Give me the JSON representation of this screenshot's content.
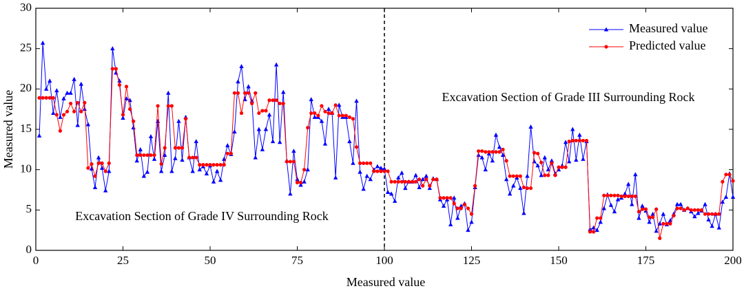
{
  "chart_data": {
    "type": "line",
    "x_label": "Measured value",
    "y_label": "Measured value",
    "annotations": [
      "Excavation Section of Grade III Surrounding Rock",
      "Excavation Section of Grade IV Surrounding Rock"
    ],
    "divider_x": 100,
    "legend": "upper right",
    "xlim": [
      0,
      200
    ],
    "ylim": [
      0,
      30
    ],
    "xticks": [
      0,
      25,
      50,
      75,
      100,
      125,
      150,
      175,
      200
    ],
    "yticks": [
      0,
      5,
      10,
      15,
      20,
      25,
      30
    ],
    "x": [
      1,
      2,
      3,
      4,
      5,
      6,
      7,
      8,
      9,
      10,
      11,
      12,
      13,
      14,
      15,
      16,
      17,
      18,
      19,
      20,
      21,
      22,
      23,
      24,
      25,
      26,
      27,
      28,
      29,
      30,
      31,
      32,
      33,
      34,
      35,
      36,
      37,
      38,
      39,
      40,
      41,
      42,
      43,
      44,
      45,
      46,
      47,
      48,
      49,
      50,
      51,
      52,
      53,
      54,
      55,
      56,
      57,
      58,
      59,
      60,
      61,
      62,
      63,
      64,
      65,
      66,
      67,
      68,
      69,
      70,
      71,
      72,
      73,
      74,
      75,
      76,
      77,
      78,
      79,
      80,
      81,
      82,
      83,
      84,
      85,
      86,
      87,
      88,
      89,
      90,
      91,
      92,
      93,
      94,
      95,
      96,
      97,
      98,
      99,
      100,
      101,
      102,
      103,
      104,
      105,
      106,
      107,
      108,
      109,
      110,
      111,
      112,
      113,
      114,
      115,
      116,
      117,
      118,
      119,
      120,
      121,
      122,
      123,
      124,
      125,
      126,
      127,
      128,
      129,
      130,
      131,
      132,
      133,
      134,
      135,
      136,
      137,
      138,
      139,
      140,
      141,
      142,
      143,
      144,
      145,
      146,
      147,
      148,
      149,
      150,
      151,
      152,
      153,
      154,
      155,
      156,
      157,
      158,
      159,
      160,
      161,
      162,
      163,
      164,
      165,
      166,
      167,
      168,
      169,
      170,
      171,
      172,
      173,
      174,
      175,
      176,
      177,
      178,
      179,
      180,
      181,
      182,
      183,
      184,
      185,
      186,
      187,
      188,
      189,
      190,
      191,
      192,
      193,
      194,
      195,
      196,
      197,
      198,
      199,
      200
    ],
    "series": [
      {
        "name": "Measured value",
        "color": "#0000ff",
        "marker": "triangle",
        "values": [
          14.2,
          25.7,
          20,
          21,
          17,
          19.8,
          16.5,
          18.8,
          19.5,
          19.5,
          21.2,
          15.5,
          20.6,
          17.5,
          15.6,
          10.1,
          7.8,
          11.5,
          10.2,
          7.4,
          9.8,
          25,
          22,
          21,
          16.4,
          18.8,
          18.6,
          15.2,
          11.1,
          12.5,
          9.2,
          9.7,
          14.1,
          11.3,
          16,
          9.8,
          11.8,
          19.5,
          9.8,
          11.4,
          16,
          11.2,
          16.5,
          11.5,
          9.8,
          13.5,
          10,
          10.4,
          9.5,
          10.5,
          8.5,
          9.8,
          8.7,
          11.3,
          13,
          11.9,
          14.7,
          20.9,
          22.8,
          18.7,
          20.3,
          18.5,
          11.5,
          15,
          12.5,
          15,
          16.8,
          13.5,
          23,
          13.4,
          19.6,
          11.1,
          7,
          12.3,
          8.8,
          8.1,
          8.5,
          10,
          18.7,
          16.5,
          16.5,
          16,
          13.2,
          17.5,
          17,
          9,
          18,
          16.5,
          16.5,
          13.5,
          10.8,
          18.5,
          9.7,
          7.6,
          9.2,
          8.8,
          10,
          10.4,
          10.2,
          10.1,
          7.2,
          7,
          6.1,
          9,
          9.6,
          7.7,
          8.5,
          8.5,
          9.3,
          7.8,
          8.8,
          9.2,
          7.7,
          8.9,
          8.8,
          6.3,
          5.5,
          6.3,
          3.2,
          6.5,
          4,
          5.5,
          5.8,
          2.5,
          3.5,
          7.8,
          11.8,
          11.5,
          10,
          12,
          11.1,
          14.3,
          12.8,
          11.8,
          8.8,
          7,
          8,
          9,
          7.7,
          4.6,
          9.2,
          15.3,
          11,
          10.5,
          9.3,
          11.5,
          10,
          11.1,
          9.5,
          10,
          10.5,
          13.4,
          11,
          15,
          11.2,
          14.3,
          11.3,
          13.5,
          2.6,
          2.8,
          2.5,
          3.5,
          5.2,
          6.9,
          5.6,
          4.8,
          6.3,
          6.5,
          7,
          8.2,
          5.7,
          9.4,
          4,
          5.5,
          4.9,
          3.5,
          4.5,
          2.4,
          3.3,
          4.5,
          3.2,
          3.7,
          4.5,
          5.7,
          5.7,
          5,
          5.2,
          4.8,
          4.2,
          4.6,
          4.9,
          5.7,
          3.8,
          3,
          4.5,
          2.8,
          6,
          6.6,
          9.5,
          6.6
        ]
      },
      {
        "name": "Predicted value",
        "color": "#ff0000",
        "marker": "circle",
        "values": [
          18.9,
          18.9,
          18.9,
          18.9,
          18.9,
          16.8,
          14.8,
          16.8,
          17.2,
          18.2,
          17.2,
          18.3,
          17.2,
          18.3,
          10.2,
          10.7,
          9.2,
          10.8,
          10.8,
          9.8,
          10.8,
          22.5,
          22.5,
          20.5,
          16.8,
          20.3,
          17.5,
          16,
          11.8,
          11.8,
          11.8,
          11.8,
          11.8,
          11.8,
          17.9,
          10.7,
          12.7,
          17.9,
          17.9,
          12.7,
          12.7,
          12.7,
          16.3,
          11.5,
          11.5,
          11.5,
          10.6,
          10.6,
          10.6,
          10.6,
          10.6,
          10.6,
          10.6,
          10.6,
          12,
          12,
          19.5,
          19.5,
          17,
          19.5,
          19.5,
          18.2,
          19.5,
          17,
          17.3,
          17.3,
          18.6,
          18.6,
          18.6,
          18.2,
          18.2,
          11,
          11,
          11,
          8.4,
          8.4,
          10,
          15.2,
          17,
          17,
          16.7,
          17.9,
          17.2,
          17,
          17,
          18,
          16.7,
          16.7,
          16.7,
          16.5,
          16.3,
          12.8,
          10.8,
          10.8,
          10.8,
          10.8,
          9.8,
          9.8,
          9.8,
          9.8,
          9.8,
          8.5,
          8.5,
          8.5,
          8.5,
          8.5,
          8.5,
          8.5,
          8.5,
          8.8,
          8,
          8.8,
          8,
          8.8,
          8.8,
          6.5,
          6.5,
          6.5,
          6.5,
          5.8,
          5.2,
          5.2,
          5.7,
          5.2,
          4.5,
          8,
          12.3,
          12.3,
          12.2,
          12.2,
          12.2,
          12.2,
          12.2,
          12.5,
          11.1,
          9.2,
          9.2,
          9.2,
          9.2,
          7.8,
          7.7,
          7.7,
          12.1,
          12,
          10.9,
          9.3,
          9.3,
          10.8,
          9.3,
          10.3,
          10.3,
          10.3,
          13.5,
          13.6,
          13.6,
          13.6,
          13.6,
          13.6,
          2.3,
          2.3,
          4,
          4,
          6.8,
          6.8,
          6.8,
          6.8,
          6.8,
          6.7,
          6.7,
          6.7,
          6.7,
          6.7,
          4.8,
          5.1,
          5.1,
          4.1,
          4.1,
          5.1,
          1.5,
          3.3,
          3.3,
          3.3,
          4.3,
          5.2,
          5.2,
          5,
          5.2,
          5,
          5,
          5,
          5,
          4.5,
          4.5,
          4.5,
          4.5,
          4.5,
          8.5,
          9.4,
          9.4,
          8.6
        ]
      }
    ]
  }
}
